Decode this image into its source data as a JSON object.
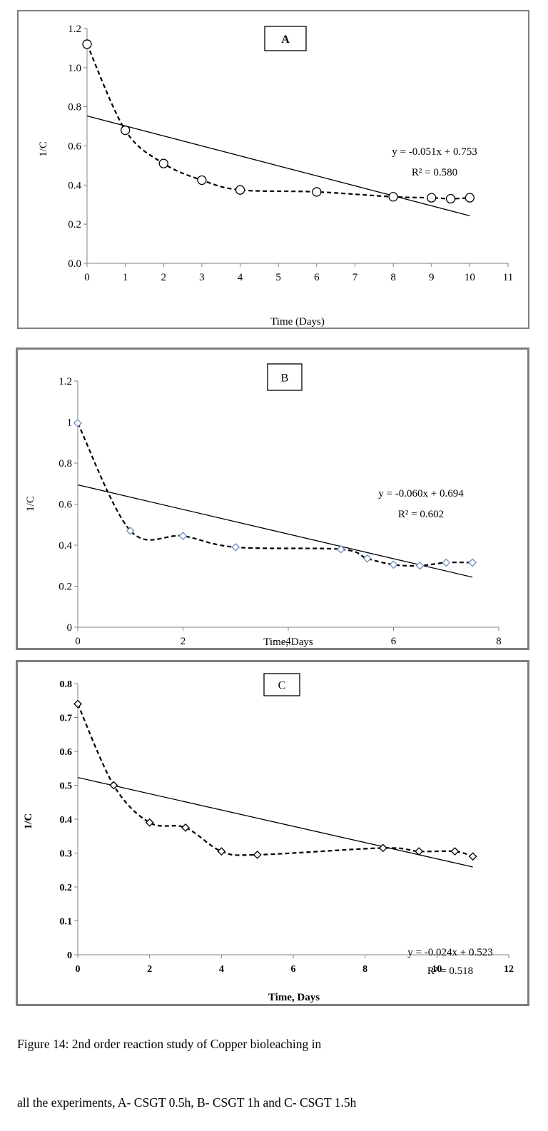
{
  "chart_data": [
    {
      "type": "scatter",
      "panel_label": "A",
      "xlabel": "Time (Days)",
      "ylabel": "1/C",
      "xlim": [
        0,
        11
      ],
      "ylim": [
        0,
        1.2
      ],
      "x_ticks": [
        "0",
        "1",
        "2",
        "3",
        "4",
        "5",
        "6",
        "7",
        "8",
        "9",
        "10",
        "11"
      ],
      "y_ticks": [
        "0.0",
        "0.2",
        "0.4",
        "0.6",
        "0.8",
        "1.0",
        "1.2"
      ],
      "marker": "circle",
      "series": [
        {
          "x": [
            0,
            1,
            2,
            3,
            4,
            6,
            8,
            9,
            9.5,
            10
          ],
          "y": [
            1.12,
            0.68,
            0.51,
            0.425,
            0.375,
            0.365,
            0.34,
            0.335,
            0.33,
            0.335
          ]
        }
      ],
      "trendline": {
        "slope": -0.051,
        "intercept": 0.753,
        "x_range": [
          0,
          10
        ]
      },
      "equation": "y = -0.051x + 0.753",
      "r_squared": "R² = 0.580",
      "marker_color": "#000000",
      "grid": false
    },
    {
      "type": "scatter",
      "panel_label": "B",
      "xlabel": "Time, Days",
      "ylabel": "1/C",
      "xlim": [
        0,
        8
      ],
      "ylim": [
        0,
        1.2
      ],
      "x_ticks": [
        "0",
        "2",
        "4",
        "6",
        "8"
      ],
      "y_ticks": [
        "0",
        "0.2",
        "0.4",
        "0.6",
        "0.8",
        "1",
        "1.2"
      ],
      "marker": "diamond",
      "series": [
        {
          "x": [
            0,
            1,
            2,
            3,
            5,
            5.5,
            6,
            6.5,
            7,
            7.5
          ],
          "y": [
            0.995,
            0.47,
            0.445,
            0.39,
            0.38,
            0.335,
            0.305,
            0.3,
            0.315,
            0.315
          ]
        }
      ],
      "trendline": {
        "slope": -0.06,
        "intercept": 0.694,
        "x_range": [
          0,
          7.5
        ]
      },
      "equation": "y = -0.060x + 0.694",
      "r_squared": "R² = 0.602",
      "marker_color": "#6f8fc0",
      "grid": false
    },
    {
      "type": "scatter",
      "panel_label": "C",
      "xlabel": "Time, Days",
      "ylabel": "1/C",
      "xlim": [
        0,
        12
      ],
      "ylim": [
        0,
        0.8
      ],
      "x_ticks": [
        "0",
        "2",
        "4",
        "6",
        "8",
        "10",
        "12"
      ],
      "y_ticks": [
        "0",
        "0.1",
        "0.2",
        "0.3",
        "0.4",
        "0.5",
        "0.6",
        "0.7",
        "0.8"
      ],
      "marker": "diamond",
      "series": [
        {
          "x": [
            0,
            1,
            2,
            3,
            4,
            5,
            8.5,
            9.5,
            10.5,
            11
          ],
          "y": [
            0.74,
            0.5,
            0.39,
            0.375,
            0.305,
            0.295,
            0.315,
            0.305,
            0.305,
            0.29
          ]
        }
      ],
      "trendline": {
        "slope": -0.024,
        "intercept": 0.523,
        "x_range": [
          0,
          11
        ]
      },
      "equation": "y = -0.024x + 0.523",
      "r_squared": "R² = 0.518",
      "marker_color": "#000000",
      "grid": false
    }
  ],
  "caption": {
    "line1": "Figure 14: 2nd order reaction study of Copper bioleaching in",
    "line2": "all the experiments, A- CSGT 0.5h, B- CSGT 1h and C- CSGT 1.5h"
  }
}
